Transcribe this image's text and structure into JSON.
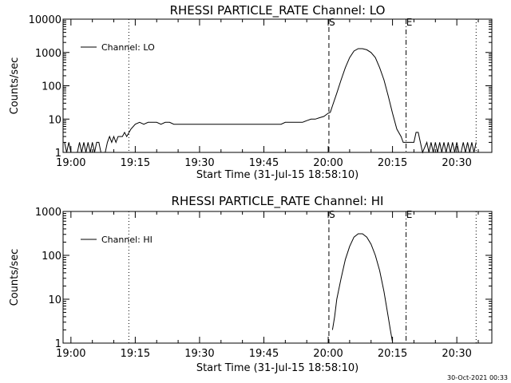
{
  "footer": {
    "timestamp": "30-Oct-2021 00:33"
  },
  "chart_data": [
    {
      "type": "line",
      "title": "RHESSI PARTICLE_RATE Channel: LO",
      "xlabel": "Start Time (31-Jul-15 18:58:10)",
      "ylabel": "Counts/sec",
      "y_scale": "log",
      "xlim": [
        "18:58:10",
        "20:38:10"
      ],
      "ylim": [
        1,
        10000
      ],
      "x_ticks": [
        "19:00",
        "19:15",
        "19:30",
        "19:45",
        "20:00",
        "20:15",
        "20:30"
      ],
      "y_ticks": [
        {
          "value": 1,
          "label": "1"
        },
        {
          "value": 10,
          "label": "10"
        },
        {
          "value": 100,
          "label": "100"
        },
        {
          "value": 1000,
          "label": "1000"
        },
        {
          "value": 10000,
          "label": "10000"
        }
      ],
      "legend": {
        "position": "top-left",
        "entries": [
          "Channel: LO"
        ]
      },
      "markers": [
        {
          "label": "",
          "x": "19:13:30",
          "style": "dotted"
        },
        {
          "label": "S",
          "x": "20:00:10",
          "style": "dashed"
        },
        {
          "label": "E",
          "x": "20:18:10",
          "style": "dashdot"
        },
        {
          "label": "",
          "x": "20:34:30",
          "style": "dotted"
        }
      ],
      "series": [
        {
          "name": "Channel: LO",
          "points": [
            [
              "18:58:30",
              2
            ],
            [
              "18:59:00",
              1
            ],
            [
              "18:59:30",
              2
            ],
            [
              "19:00:00",
              1
            ],
            [
              "19:00:30",
              1
            ],
            [
              "19:01:30",
              1
            ],
            [
              "19:02:00",
              2
            ],
            [
              "19:02:30",
              1
            ],
            [
              "19:03:00",
              2
            ],
            [
              "19:03:30",
              1
            ],
            [
              "19:04:00",
              2
            ],
            [
              "19:04:30",
              1
            ],
            [
              "19:05:00",
              2
            ],
            [
              "19:05:30",
              1
            ],
            [
              "19:06:00",
              2
            ],
            [
              "19:06:30",
              2
            ],
            [
              "19:07:00",
              1
            ],
            [
              "19:08:00",
              1
            ],
            [
              "19:08:30",
              2
            ],
            [
              "19:09:00",
              3
            ],
            [
              "19:09:30",
              2
            ],
            [
              "19:10:00",
              3
            ],
            [
              "19:10:30",
              2
            ],
            [
              "19:11:00",
              3
            ],
            [
              "19:11:30",
              3
            ],
            [
              "19:12:00",
              3
            ],
            [
              "19:12:30",
              4
            ],
            [
              "19:13:00",
              3
            ],
            [
              "19:14:00",
              5
            ],
            [
              "19:15:00",
              7
            ],
            [
              "19:16:00",
              8
            ],
            [
              "19:17:00",
              7
            ],
            [
              "19:18:00",
              8
            ],
            [
              "19:19:00",
              8
            ],
            [
              "19:20:00",
              8
            ],
            [
              "19:21:00",
              7
            ],
            [
              "19:22:00",
              8
            ],
            [
              "19:23:00",
              8
            ],
            [
              "19:24:00",
              7
            ],
            [
              "19:25:00",
              7
            ],
            [
              "19:26:00",
              7
            ],
            [
              "19:27:00",
              7
            ],
            [
              "19:28:00",
              7
            ],
            [
              "19:29:00",
              7
            ],
            [
              "19:30:00",
              7
            ],
            [
              "19:31:00",
              7
            ],
            [
              "19:32:00",
              7
            ],
            [
              "19:33:00",
              7
            ],
            [
              "19:34:00",
              7
            ],
            [
              "19:35:00",
              7
            ],
            [
              "19:36:00",
              7
            ],
            [
              "19:37:00",
              7
            ],
            [
              "19:38:00",
              7
            ],
            [
              "19:39:00",
              7
            ],
            [
              "19:40:00",
              7
            ],
            [
              "19:41:00",
              7
            ],
            [
              "19:42:00",
              7
            ],
            [
              "19:43:00",
              7
            ],
            [
              "19:44:00",
              7
            ],
            [
              "19:45:00",
              7
            ],
            [
              "19:46:00",
              7
            ],
            [
              "19:47:00",
              7
            ],
            [
              "19:48:00",
              7
            ],
            [
              "19:49:00",
              7
            ],
            [
              "19:50:00",
              8
            ],
            [
              "19:51:00",
              8
            ],
            [
              "19:52:00",
              8
            ],
            [
              "19:53:00",
              8
            ],
            [
              "19:54:00",
              8
            ],
            [
              "19:55:00",
              9
            ],
            [
              "19:56:00",
              10
            ],
            [
              "19:57:00",
              10
            ],
            [
              "19:58:00",
              11
            ],
            [
              "19:59:00",
              12
            ],
            [
              "20:00:00",
              15
            ],
            [
              "20:00:30",
              16
            ],
            [
              "20:01:00",
              25
            ],
            [
              "20:02:00",
              60
            ],
            [
              "20:03:00",
              150
            ],
            [
              "20:04:00",
              350
            ],
            [
              "20:05:00",
              700
            ],
            [
              "20:06:00",
              1100
            ],
            [
              "20:07:00",
              1300
            ],
            [
              "20:08:00",
              1300
            ],
            [
              "20:09:00",
              1200
            ],
            [
              "20:10:00",
              1000
            ],
            [
              "20:11:00",
              700
            ],
            [
              "20:12:00",
              350
            ],
            [
              "20:13:00",
              150
            ],
            [
              "20:14:00",
              50
            ],
            [
              "20:15:00",
              15
            ],
            [
              "20:16:00",
              5
            ],
            [
              "20:17:00",
              3
            ],
            [
              "20:17:30",
              2
            ],
            [
              "20:18:00",
              2
            ],
            [
              "20:19:00",
              2
            ],
            [
              "20:20:00",
              2
            ],
            [
              "20:20:30",
              4
            ],
            [
              "20:21:00",
              4
            ],
            [
              "20:21:30",
              2
            ],
            [
              "20:22:00",
              1
            ],
            [
              "20:23:00",
              2
            ],
            [
              "20:23:30",
              1
            ],
            [
              "20:24:00",
              2
            ],
            [
              "20:24:30",
              1
            ],
            [
              "20:25:00",
              2
            ],
            [
              "20:25:30",
              1
            ],
            [
              "20:26:00",
              2
            ],
            [
              "20:26:30",
              1
            ],
            [
              "20:27:00",
              2
            ],
            [
              "20:27:30",
              1
            ],
            [
              "20:28:00",
              2
            ],
            [
              "20:28:30",
              1
            ],
            [
              "20:29:00",
              2
            ],
            [
              "20:29:30",
              1
            ],
            [
              "20:30:00",
              2
            ],
            [
              "20:30:30",
              1
            ],
            [
              "20:31:00",
              1
            ],
            [
              "20:31:30",
              2
            ],
            [
              "20:32:00",
              1
            ],
            [
              "20:32:30",
              2
            ],
            [
              "20:33:00",
              1
            ],
            [
              "20:33:30",
              2
            ],
            [
              "20:34:00",
              1
            ],
            [
              "20:34:30",
              2
            ]
          ]
        }
      ]
    },
    {
      "type": "line",
      "title": "RHESSI PARTICLE_RATE Channel: HI",
      "xlabel": "Start Time (31-Jul-15 18:58:10)",
      "ylabel": "Counts/sec",
      "y_scale": "log",
      "xlim": [
        "18:58:10",
        "20:38:10"
      ],
      "ylim": [
        1,
        1000
      ],
      "x_ticks": [
        "19:00",
        "19:15",
        "19:30",
        "19:45",
        "20:00",
        "20:15",
        "20:30"
      ],
      "y_ticks": [
        {
          "value": 1,
          "label": "1"
        },
        {
          "value": 10,
          "label": "10"
        },
        {
          "value": 100,
          "label": "100"
        },
        {
          "value": 1000,
          "label": "1000"
        }
      ],
      "legend": {
        "position": "top-left",
        "entries": [
          "Channel: HI"
        ]
      },
      "markers": [
        {
          "label": "",
          "x": "19:13:30",
          "style": "dotted"
        },
        {
          "label": "S",
          "x": "20:00:10",
          "style": "dashed"
        },
        {
          "label": "E",
          "x": "20:18:10",
          "style": "dashdot"
        },
        {
          "label": "",
          "x": "20:34:30",
          "style": "dotted"
        }
      ],
      "series": [
        {
          "name": "Channel: HI",
          "points": [
            [
              "20:01:00",
              2
            ],
            [
              "20:01:30",
              4
            ],
            [
              "20:02:00",
              10
            ],
            [
              "20:03:00",
              30
            ],
            [
              "20:04:00",
              80
            ],
            [
              "20:05:00",
              160
            ],
            [
              "20:06:00",
              260
            ],
            [
              "20:07:00",
              310
            ],
            [
              "20:08:00",
              310
            ],
            [
              "20:09:00",
              260
            ],
            [
              "20:10:00",
              180
            ],
            [
              "20:11:00",
              100
            ],
            [
              "20:12:00",
              45
            ],
            [
              "20:13:00",
              15
            ],
            [
              "20:14:00",
              4
            ],
            [
              "20:14:30",
              2
            ],
            [
              "20:15:00",
              1.05
            ]
          ]
        }
      ]
    }
  ]
}
